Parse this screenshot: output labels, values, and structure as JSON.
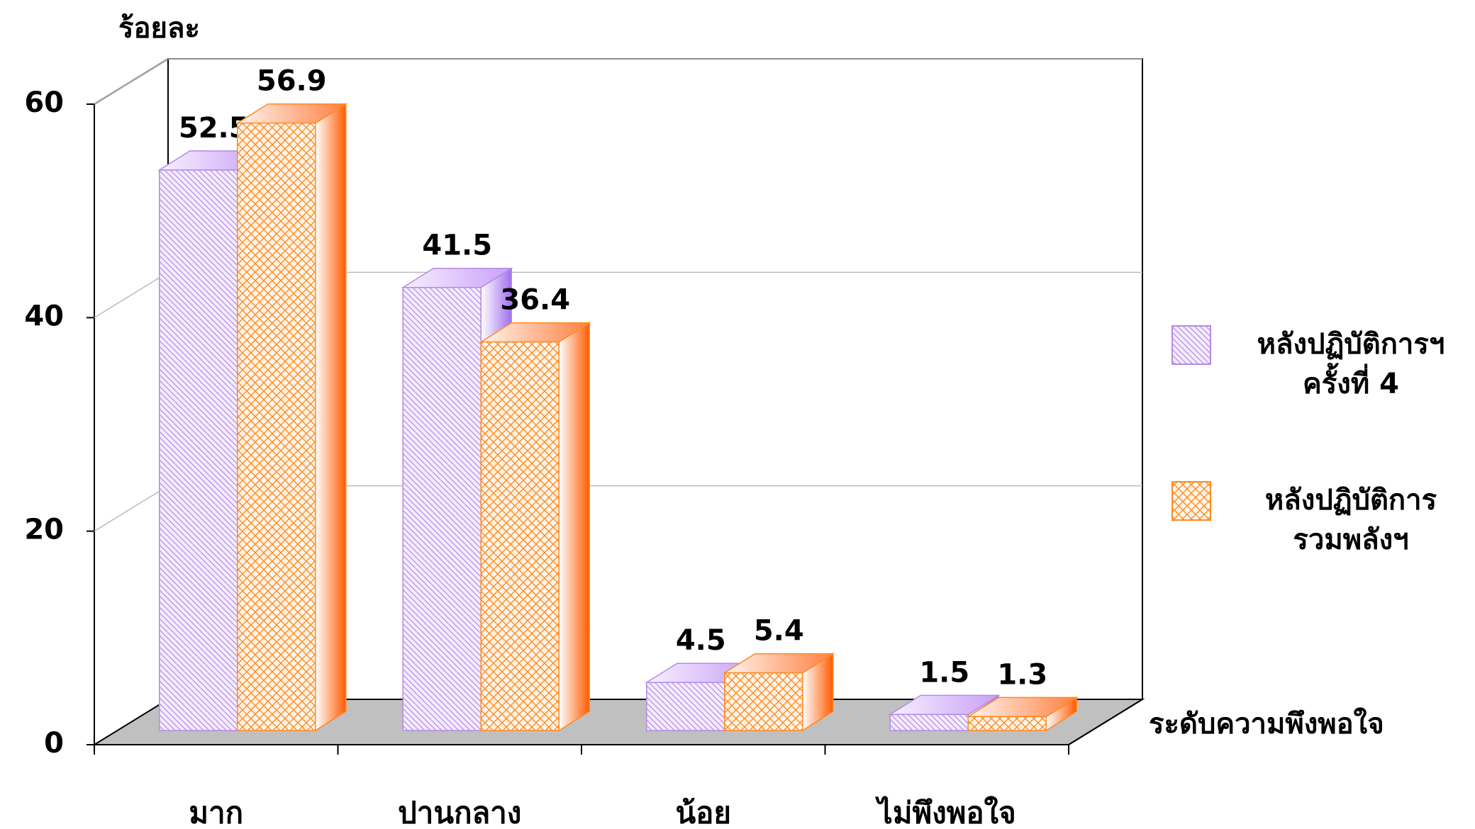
{
  "chart_data": {
    "type": "bar3d",
    "y_label": "ร้อยละ",
    "x_label": "ระดับความพึงพอใจ",
    "categories": [
      "มาก",
      "ปานกลาง",
      "น้อย",
      "ไม่พึงพอใจ"
    ],
    "series": [
      {
        "name": "หลังปฏิบัติการฯ ครั้งที่ 4",
        "color": "#c8a2f0",
        "values": [
          52.5,
          41.5,
          4.5,
          1.5
        ]
      },
      {
        "name": "หลังปฏิบัติการ รวมพลังฯ",
        "color": "#ff9430",
        "values": [
          56.9,
          36.4,
          5.4,
          1.3
        ]
      }
    ],
    "ylim": [
      0,
      60
    ],
    "yticks": [
      0,
      20,
      40,
      60
    ],
    "grid": true,
    "legend": "right"
  }
}
